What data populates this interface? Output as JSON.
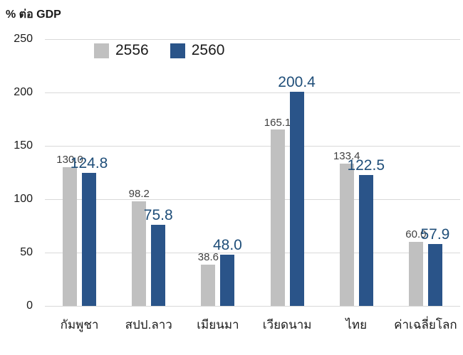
{
  "title": "% ต่อ GDP",
  "legend": {
    "items": [
      {
        "label": "2556",
        "color": "#c0c0c0"
      },
      {
        "label": "2560",
        "color": "#2a5489"
      }
    ]
  },
  "colors": {
    "series_2556_bar": "#c0c0c0",
    "series_2560_bar": "#2a5489",
    "label_2556_text": "#404040",
    "label_2560_text": "#1f4e79",
    "gridline": "#d9d9d9",
    "axis_text": "#1a1a1a"
  },
  "chart_data": {
    "type": "bar",
    "title": "% ต่อ GDP",
    "ylabel": "% ต่อ GDP",
    "categories": [
      "กัมพูชา",
      "สปป.ลาว",
      "เมียนมา",
      "เวียดนาม",
      "ไทย",
      "ค่าเฉลี่ยโลก"
    ],
    "series": [
      {
        "name": "2556",
        "color": "#c0c0c0",
        "values": [
          130.0,
          98.2,
          38.6,
          165.1,
          133.4,
          60.0
        ]
      },
      {
        "name": "2560",
        "color": "#2a5489",
        "values": [
          124.8,
          75.8,
          48.0,
          200.4,
          122.5,
          57.9
        ]
      }
    ],
    "value_label_decimals": 1,
    "ylim": [
      0,
      250
    ],
    "yticks": [
      0,
      50,
      100,
      150,
      200,
      250
    ],
    "grid": true,
    "legend_position": "top"
  }
}
